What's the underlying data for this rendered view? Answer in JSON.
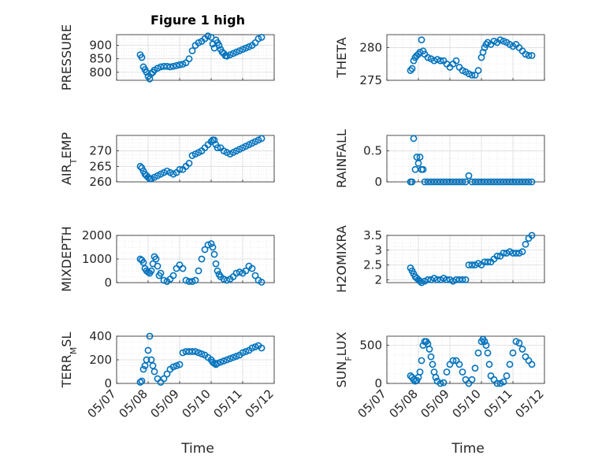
{
  "title": "Figure 1 high",
  "marker_color": "#0072BD",
  "xlabel": "Time",
  "x_ticks": [
    "05/07",
    "05/08",
    "05/09",
    "05/10",
    "05/11",
    "05/12"
  ],
  "chart_data": [
    {
      "type": "scatter",
      "ylabel": "PRESSURE",
      "ylim": [
        770,
        940
      ],
      "yticks": [
        800,
        850,
        900
      ],
      "x": [
        0.75,
        0.8,
        0.85,
        0.9,
        0.95,
        1.0,
        1.05,
        1.1,
        1.15,
        1.2,
        1.3,
        1.4,
        1.5,
        1.6,
        1.7,
        1.8,
        1.9,
        2.0,
        2.1,
        2.2,
        2.3,
        2.4,
        2.5,
        2.6,
        2.7,
        2.8,
        2.9,
        3.0,
        3.05,
        3.1,
        3.15,
        3.2,
        3.25,
        3.3,
        3.35,
        3.4,
        3.45,
        3.5,
        3.6,
        3.7,
        3.8,
        3.9,
        4.0,
        4.1,
        4.2,
        4.3,
        4.4,
        4.5,
        4.6
      ],
      "y": [
        865,
        855,
        820,
        810,
        800,
        785,
        775,
        795,
        800,
        808,
        815,
        820,
        822,
        822,
        820,
        822,
        825,
        828,
        830,
        835,
        850,
        880,
        900,
        910,
        915,
        925,
        935,
        930,
        905,
        890,
        920,
        910,
        900,
        885,
        875,
        870,
        862,
        860,
        865,
        870,
        875,
        880,
        885,
        890,
        895,
        900,
        910,
        925,
        930
      ]
    },
    {
      "type": "scatter",
      "ylabel": "THETA",
      "ylim": [
        275,
        282
      ],
      "yticks": [
        275,
        280
      ],
      "x": [
        0.75,
        0.8,
        0.85,
        0.9,
        0.95,
        1.0,
        1.05,
        1.1,
        1.15,
        1.2,
        1.3,
        1.4,
        1.5,
        1.6,
        1.7,
        1.8,
        1.9,
        2.0,
        2.1,
        2.2,
        2.3,
        2.4,
        2.5,
        2.6,
        2.7,
        2.8,
        2.9,
        3.0,
        3.05,
        3.1,
        3.15,
        3.2,
        3.3,
        3.4,
        3.5,
        3.6,
        3.7,
        3.8,
        3.9,
        4.0,
        4.1,
        4.2,
        4.3,
        4.4,
        4.5,
        4.6
      ],
      "y": [
        276.5,
        276.8,
        278.0,
        278.5,
        278.8,
        279.0,
        279.3,
        281.2,
        279.5,
        279.0,
        278.5,
        278.3,
        278.0,
        278.2,
        278.0,
        278.0,
        277.5,
        277.0,
        277.5,
        278.0,
        277.0,
        276.5,
        276.3,
        276.0,
        275.8,
        275.8,
        276.5,
        278.5,
        279.3,
        280.0,
        280.5,
        280.8,
        280.5,
        281.0,
        280.8,
        281.2,
        281.0,
        280.8,
        280.5,
        280.2,
        280.5,
        280.0,
        279.5,
        279.0,
        278.8,
        278.8
      ]
    },
    {
      "type": "scatter",
      "ylabel": "AIR_TEMP",
      "ylim": [
        260,
        275
      ],
      "yticks": [
        260,
        265,
        270
      ],
      "x": [
        0.75,
        0.8,
        0.85,
        0.9,
        0.95,
        1.0,
        1.05,
        1.1,
        1.2,
        1.3,
        1.4,
        1.5,
        1.6,
        1.7,
        1.8,
        1.9,
        2.0,
        2.1,
        2.2,
        2.3,
        2.4,
        2.5,
        2.6,
        2.7,
        2.8,
        2.9,
        3.0,
        3.05,
        3.1,
        3.15,
        3.2,
        3.3,
        3.4,
        3.5,
        3.6,
        3.7,
        3.8,
        3.9,
        4.0,
        4.1,
        4.2,
        4.3,
        4.4,
        4.5,
        4.6
      ],
      "y": [
        265,
        264.5,
        263.5,
        262.5,
        262.0,
        261.5,
        261.0,
        261.0,
        261.5,
        262.0,
        262.5,
        263.0,
        263.5,
        263.0,
        262.5,
        263.0,
        264.0,
        264.0,
        265.0,
        266.0,
        268.5,
        269.0,
        269.5,
        270.0,
        271.0,
        272.0,
        273.0,
        273.5,
        273.5,
        272.0,
        271.0,
        271.0,
        270.0,
        269.5,
        269.0,
        269.5,
        270.0,
        270.5,
        271.0,
        271.5,
        272.0,
        272.5,
        273.0,
        273.5,
        274.0
      ]
    },
    {
      "type": "scatter",
      "ylabel": "RAINFALL",
      "ylim": [
        0,
        0.75
      ],
      "yticks": [
        0,
        0.5
      ],
      "x": [
        0.75,
        0.8,
        0.85,
        0.9,
        0.95,
        1.0,
        1.05,
        1.1,
        1.15,
        1.2,
        1.3,
        1.4,
        1.5,
        1.6,
        1.7,
        1.8,
        1.9,
        2.0,
        2.1,
        2.2,
        2.3,
        2.4,
        2.5,
        2.6,
        2.7,
        2.8,
        2.9,
        3.0,
        3.1,
        3.2,
        3.3,
        3.4,
        3.5,
        3.6,
        3.7,
        3.8,
        3.9,
        4.0,
        4.1,
        4.2,
        4.3,
        4.4,
        4.5,
        4.6
      ],
      "y": [
        0,
        0,
        0.7,
        0.2,
        0.4,
        0.3,
        0.4,
        0.2,
        0.2,
        0,
        0,
        0,
        0,
        0,
        0,
        0,
        0,
        0,
        0,
        0,
        0,
        0,
        0,
        0.1,
        0,
        0,
        0,
        0,
        0,
        0,
        0,
        0,
        0,
        0,
        0,
        0,
        0,
        0,
        0,
        0,
        0,
        0,
        0,
        0
      ]
    },
    {
      "type": "scatter",
      "ylabel": "MIXDEPTH",
      "ylim": [
        0,
        2000
      ],
      "yticks": [
        0,
        1000,
        2000
      ],
      "x": [
        0.75,
        0.8,
        0.85,
        0.9,
        0.95,
        1.0,
        1.05,
        1.1,
        1.15,
        1.2,
        1.25,
        1.3,
        1.35,
        1.4,
        1.5,
        1.6,
        1.7,
        1.8,
        1.9,
        2.0,
        2.1,
        2.2,
        2.3,
        2.4,
        2.5,
        2.6,
        2.7,
        2.8,
        2.9,
        3.0,
        3.05,
        3.1,
        3.15,
        3.2,
        3.25,
        3.3,
        3.4,
        3.5,
        3.6,
        3.7,
        3.8,
        3.9,
        4.0,
        4.1,
        4.2,
        4.3,
        4.4,
        4.5,
        4.6
      ],
      "y": [
        1000,
        950,
        850,
        600,
        500,
        450,
        400,
        500,
        800,
        1100,
        1000,
        700,
        300,
        400,
        100,
        50,
        150,
        300,
        600,
        750,
        600,
        100,
        50,
        50,
        100,
        500,
        1000,
        1400,
        1600,
        1650,
        1500,
        1200,
        800,
        500,
        350,
        250,
        150,
        100,
        150,
        250,
        400,
        450,
        400,
        500,
        700,
        600,
        300,
        100,
        20
      ]
    },
    {
      "type": "scatter",
      "ylabel": "H2OMIXRA",
      "ylim": [
        1.9,
        3.5
      ],
      "yticks": [
        2,
        2.5,
        3,
        3.5
      ],
      "x": [
        0.75,
        0.8,
        0.85,
        0.9,
        0.95,
        1.0,
        1.05,
        1.1,
        1.2,
        1.3,
        1.4,
        1.5,
        1.6,
        1.7,
        1.8,
        1.9,
        2.0,
        2.1,
        2.2,
        2.3,
        2.4,
        2.5,
        2.6,
        2.7,
        2.8,
        2.9,
        3.0,
        3.1,
        3.2,
        3.3,
        3.4,
        3.5,
        3.6,
        3.7,
        3.8,
        3.9,
        4.0,
        4.1,
        4.2,
        4.3,
        4.4,
        4.5,
        4.6
      ],
      "y": [
        2.4,
        2.3,
        2.2,
        2.1,
        2.05,
        2.0,
        1.95,
        1.9,
        1.95,
        2.0,
        2.0,
        2.05,
        2.0,
        2.0,
        2.05,
        2.0,
        2.0,
        1.95,
        2.0,
        2.0,
        2.0,
        2.0,
        2.5,
        2.5,
        2.5,
        2.55,
        2.5,
        2.6,
        2.6,
        2.6,
        2.7,
        2.8,
        2.8,
        2.9,
        2.9,
        2.95,
        2.9,
        2.9,
        2.9,
        2.95,
        3.2,
        3.4,
        3.5
      ]
    },
    {
      "type": "scatter",
      "ylabel": "TERR_MSL",
      "ylim": [
        0,
        400
      ],
      "yticks": [
        0,
        200,
        400
      ],
      "x": [
        0.75,
        0.8,
        0.85,
        0.9,
        0.95,
        1.0,
        1.05,
        1.1,
        1.15,
        1.2,
        1.3,
        1.4,
        1.5,
        1.6,
        1.7,
        1.8,
        1.9,
        2.0,
        2.1,
        2.2,
        2.3,
        2.4,
        2.5,
        2.6,
        2.7,
        2.8,
        2.9,
        3.0,
        3.05,
        3.1,
        3.15,
        3.2,
        3.3,
        3.4,
        3.5,
        3.6,
        3.7,
        3.8,
        3.9,
        4.0,
        4.1,
        4.2,
        4.3,
        4.4,
        4.5,
        4.6
      ],
      "y": [
        10,
        20,
        120,
        150,
        200,
        280,
        400,
        200,
        150,
        100,
        40,
        10,
        40,
        80,
        120,
        140,
        150,
        160,
        260,
        270,
        270,
        270,
        270,
        260,
        250,
        240,
        220,
        200,
        180,
        170,
        160,
        170,
        180,
        190,
        200,
        210,
        220,
        230,
        240,
        260,
        270,
        280,
        300,
        310,
        320,
        300
      ]
    },
    {
      "type": "scatter",
      "ylabel": "SUN_FLUX",
      "ylim": [
        0,
        620
      ],
      "yticks": [
        0,
        500
      ],
      "x": [
        0.75,
        0.8,
        0.85,
        0.9,
        0.95,
        1.0,
        1.05,
        1.1,
        1.15,
        1.2,
        1.25,
        1.3,
        1.35,
        1.4,
        1.45,
        1.5,
        1.55,
        1.6,
        1.7,
        1.8,
        1.9,
        2.0,
        2.1,
        2.2,
        2.3,
        2.4,
        2.5,
        2.6,
        2.7,
        2.8,
        2.9,
        3.0,
        3.05,
        3.1,
        3.15,
        3.2,
        3.25,
        3.3,
        3.4,
        3.5,
        3.6,
        3.7,
        3.8,
        3.9,
        4.0,
        4.1,
        4.2,
        4.3,
        4.4,
        4.5,
        4.6
      ],
      "y": [
        100,
        80,
        50,
        30,
        40,
        80,
        150,
        300,
        500,
        550,
        550,
        520,
        450,
        350,
        250,
        150,
        80,
        30,
        0,
        10,
        150,
        250,
        300,
        300,
        250,
        150,
        50,
        0,
        50,
        200,
        400,
        550,
        580,
        550,
        500,
        400,
        250,
        100,
        50,
        0,
        0,
        20,
        100,
        250,
        400,
        550,
        530,
        450,
        350,
        300,
        250
      ]
    }
  ]
}
